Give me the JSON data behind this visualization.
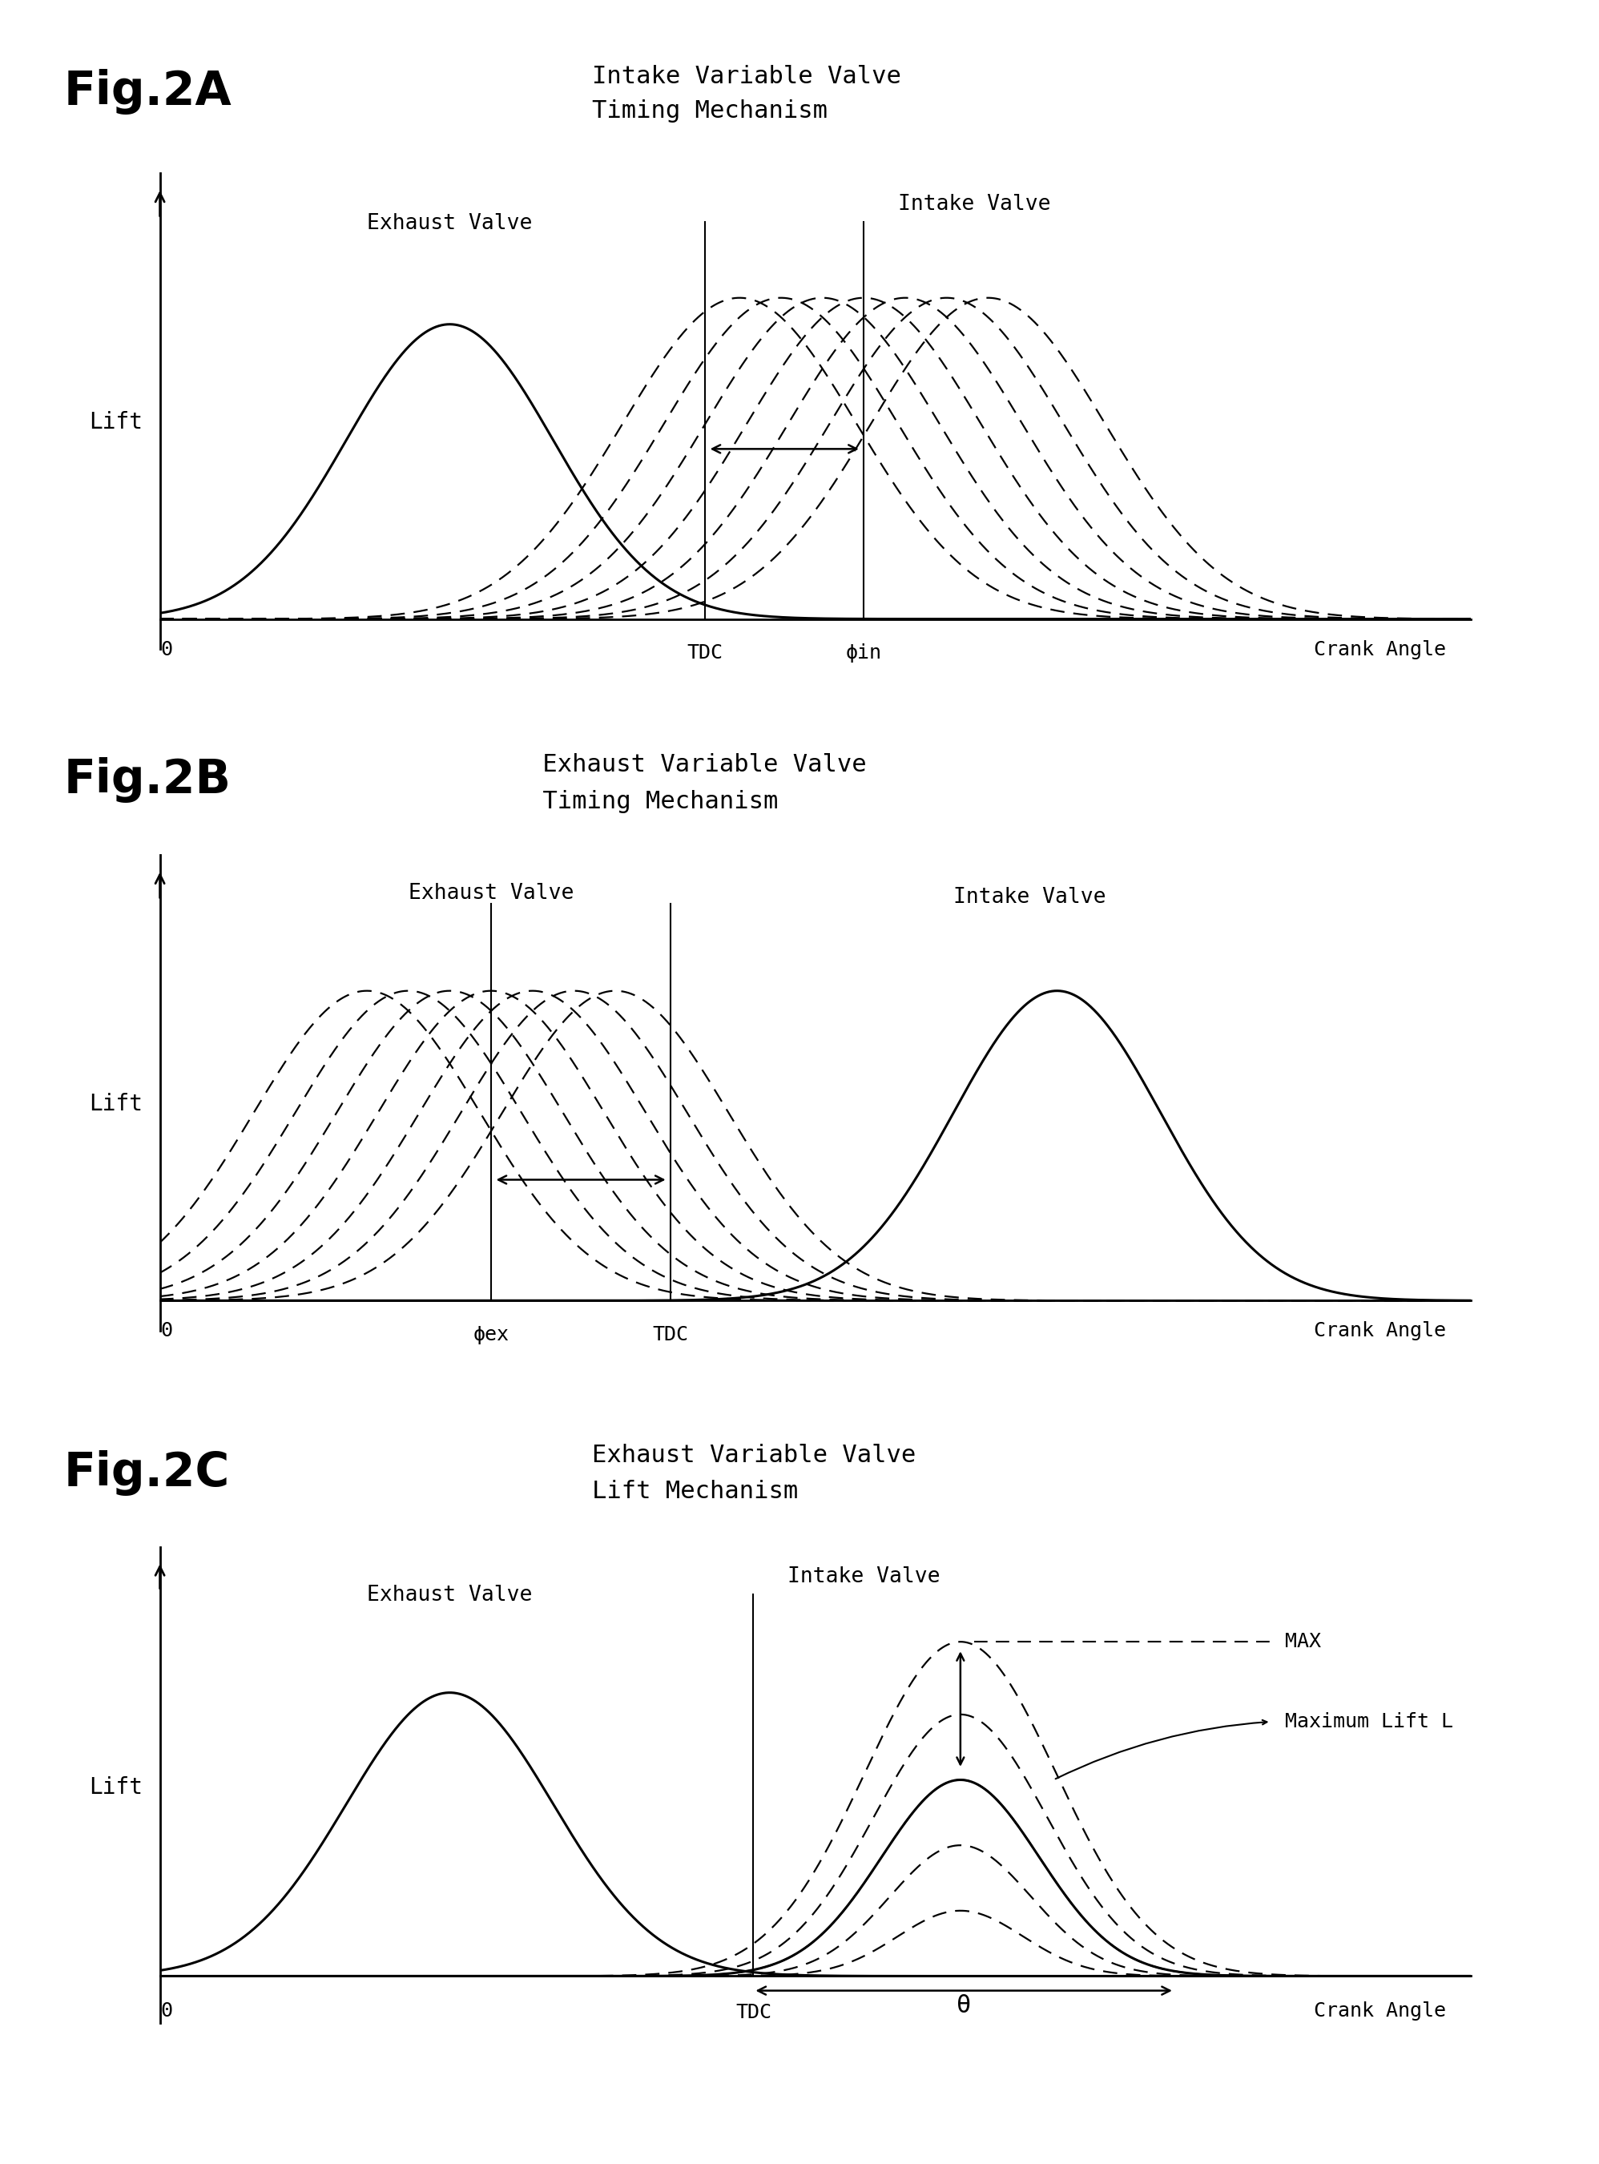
{
  "fig_labels": [
    "Fig.2A",
    "Fig.2B",
    "Fig.2C"
  ],
  "fig_subtitles_A": [
    "Intake Variable Valve",
    "Timing Mechanism"
  ],
  "fig_subtitles_B": [
    " Exhaust Variable Valve",
    " Timing Mechanism"
  ],
  "fig_subtitles_C": [
    "Exhaust Variable Valve",
    "Lift Mechanism"
  ],
  "label_A_exhaust": "Exhaust Valve",
  "label_A_intake": "Intake Valve",
  "label_B_exhaust": "Exhaust Valve",
  "label_B_intake": "Intake Valve",
  "label_C_exhaust": "Exhaust Valve",
  "label_C_intake": "Intake Valve",
  "lift_label": "Lift",
  "zero_label": "0",
  "crank_angle_label": "Crank Angle",
  "tdc_label": "TDC",
  "phi_in_label": "ϕin",
  "phi_ex_label": "ϕex",
  "theta_label": "θ",
  "max_label": "MAX",
  "max_lift_label": "Maximum Lift L",
  "background": "#ffffff",
  "line_color": "#000000"
}
